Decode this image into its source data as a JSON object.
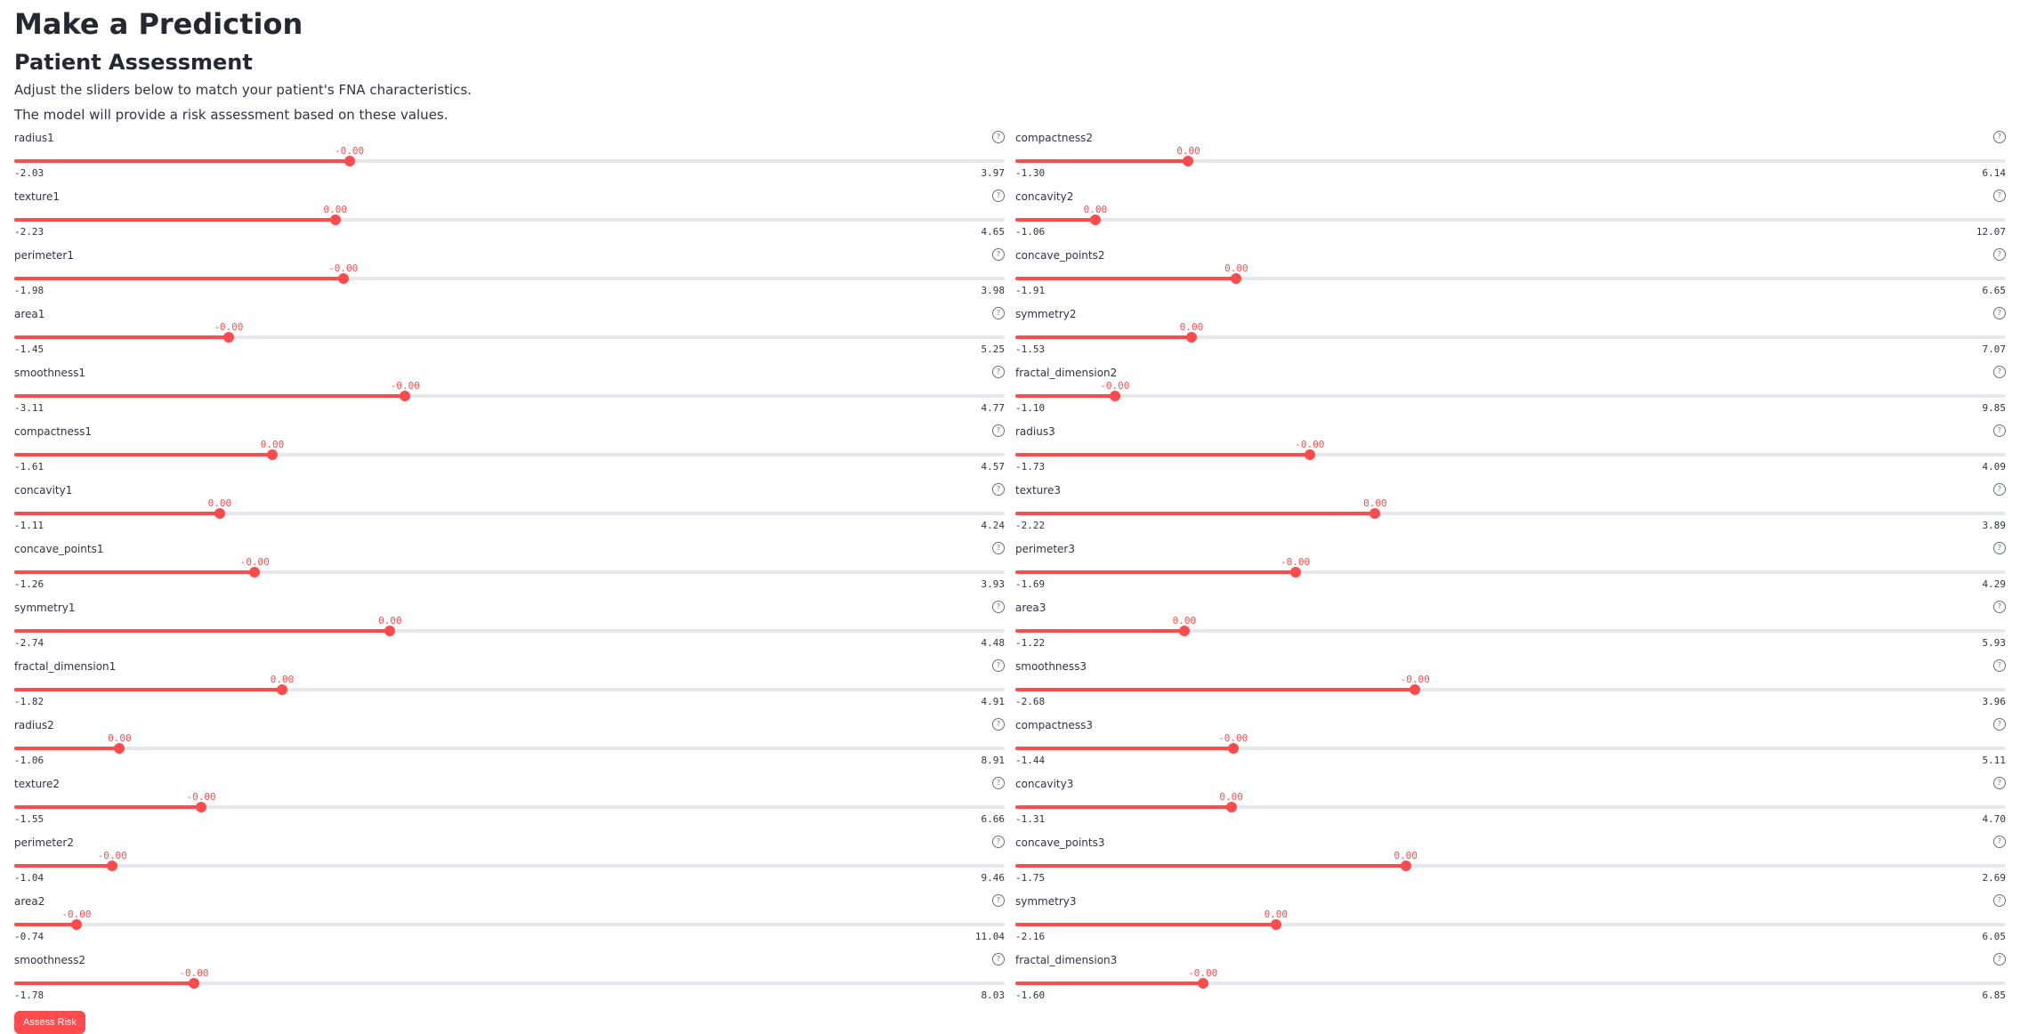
{
  "page": {
    "title": "Make a Prediction",
    "subtitle": "Patient Assessment",
    "description_1": "Adjust the sliders below to match your patient's FNA characteristics.",
    "description_2": "The model will provide a risk assessment based on these values.",
    "help_icon": "question-circle-icon",
    "accent_color": "#ff4b4b"
  },
  "sliders_left": [
    {
      "label": "radius1",
      "value": "-0.00",
      "min": "-2.03",
      "max": "3.97",
      "min_num": -2.03,
      "max_num": 3.97,
      "value_num": 0.0
    },
    {
      "label": "texture1",
      "value": "0.00",
      "min": "-2.23",
      "max": "4.65",
      "min_num": -2.23,
      "max_num": 4.65,
      "value_num": 0.0
    },
    {
      "label": "perimeter1",
      "value": "-0.00",
      "min": "-1.98",
      "max": "3.98",
      "min_num": -1.98,
      "max_num": 3.98,
      "value_num": 0.0
    },
    {
      "label": "area1",
      "value": "-0.00",
      "min": "-1.45",
      "max": "5.25",
      "min_num": -1.45,
      "max_num": 5.25,
      "value_num": 0.0
    },
    {
      "label": "smoothness1",
      "value": "-0.00",
      "min": "-3.11",
      "max": "4.77",
      "min_num": -3.11,
      "max_num": 4.77,
      "value_num": 0.0
    },
    {
      "label": "compactness1",
      "value": "0.00",
      "min": "-1.61",
      "max": "4.57",
      "min_num": -1.61,
      "max_num": 4.57,
      "value_num": 0.0
    },
    {
      "label": "concavity1",
      "value": "0.00",
      "min": "-1.11",
      "max": "4.24",
      "min_num": -1.11,
      "max_num": 4.24,
      "value_num": 0.0
    },
    {
      "label": "concave_points1",
      "value": "-0.00",
      "min": "-1.26",
      "max": "3.93",
      "min_num": -1.26,
      "max_num": 3.93,
      "value_num": 0.0
    },
    {
      "label": "symmetry1",
      "value": "0.00",
      "min": "-2.74",
      "max": "4.48",
      "min_num": -2.74,
      "max_num": 4.48,
      "value_num": 0.0
    },
    {
      "label": "fractal_dimension1",
      "value": "0.00",
      "min": "-1.82",
      "max": "4.91",
      "min_num": -1.82,
      "max_num": 4.91,
      "value_num": 0.0
    },
    {
      "label": "radius2",
      "value": "0.00",
      "min": "-1.06",
      "max": "8.91",
      "min_num": -1.06,
      "max_num": 8.91,
      "value_num": 0.0
    },
    {
      "label": "texture2",
      "value": "-0.00",
      "min": "-1.55",
      "max": "6.66",
      "min_num": -1.55,
      "max_num": 6.66,
      "value_num": 0.0
    },
    {
      "label": "perimeter2",
      "value": "-0.00",
      "min": "-1.04",
      "max": "9.46",
      "min_num": -1.04,
      "max_num": 9.46,
      "value_num": 0.0
    },
    {
      "label": "area2",
      "value": "-0.00",
      "min": "-0.74",
      "max": "11.04",
      "min_num": -0.74,
      "max_num": 11.04,
      "value_num": 0.0
    },
    {
      "label": "smoothness2",
      "value": "-0.00",
      "min": "-1.78",
      "max": "8.03",
      "min_num": -1.78,
      "max_num": 8.03,
      "value_num": 0.0
    }
  ],
  "sliders_right": [
    {
      "label": "compactness2",
      "value": "0.00",
      "min": "-1.30",
      "max": "6.14",
      "min_num": -1.3,
      "max_num": 6.14,
      "value_num": 0.0
    },
    {
      "label": "concavity2",
      "value": "0.00",
      "min": "-1.06",
      "max": "12.07",
      "min_num": -1.06,
      "max_num": 12.07,
      "value_num": 0.0
    },
    {
      "label": "concave_points2",
      "value": "0.00",
      "min": "-1.91",
      "max": "6.65",
      "min_num": -1.91,
      "max_num": 6.65,
      "value_num": 0.0
    },
    {
      "label": "symmetry2",
      "value": "0.00",
      "min": "-1.53",
      "max": "7.07",
      "min_num": -1.53,
      "max_num": 7.07,
      "value_num": 0.0
    },
    {
      "label": "fractal_dimension2",
      "value": "-0.00",
      "min": "-1.10",
      "max": "9.85",
      "min_num": -1.1,
      "max_num": 9.85,
      "value_num": 0.0
    },
    {
      "label": "radius3",
      "value": "-0.00",
      "min": "-1.73",
      "max": "4.09",
      "min_num": -1.73,
      "max_num": 4.09,
      "value_num": 0.0
    },
    {
      "label": "texture3",
      "value": "0.00",
      "min": "-2.22",
      "max": "3.89",
      "min_num": -2.22,
      "max_num": 3.89,
      "value_num": 0.0
    },
    {
      "label": "perimeter3",
      "value": "-0.00",
      "min": "-1.69",
      "max": "4.29",
      "min_num": -1.69,
      "max_num": 4.29,
      "value_num": 0.0
    },
    {
      "label": "area3",
      "value": "0.00",
      "min": "-1.22",
      "max": "5.93",
      "min_num": -1.22,
      "max_num": 5.93,
      "value_num": 0.0
    },
    {
      "label": "smoothness3",
      "value": "-0.00",
      "min": "-2.68",
      "max": "3.96",
      "min_num": -2.68,
      "max_num": 3.96,
      "value_num": 0.0
    },
    {
      "label": "compactness3",
      "value": "-0.00",
      "min": "-1.44",
      "max": "5.11",
      "min_num": -1.44,
      "max_num": 5.11,
      "value_num": 0.0
    },
    {
      "label": "concavity3",
      "value": "0.00",
      "min": "-1.31",
      "max": "4.70",
      "min_num": -1.31,
      "max_num": 4.7,
      "value_num": 0.0
    },
    {
      "label": "concave_points3",
      "value": "0.00",
      "min": "-1.75",
      "max": "2.69",
      "min_num": -1.75,
      "max_num": 2.69,
      "value_num": 0.0
    },
    {
      "label": "symmetry3",
      "value": "0.00",
      "min": "-2.16",
      "max": "6.05",
      "min_num": -2.16,
      "max_num": 6.05,
      "value_num": 0.0
    },
    {
      "label": "fractal_dimension3",
      "value": "-0.00",
      "min": "-1.60",
      "max": "6.85",
      "min_num": -1.6,
      "max_num": 6.85,
      "value_num": 0.0
    }
  ],
  "button": {
    "label": "Assess Risk"
  }
}
